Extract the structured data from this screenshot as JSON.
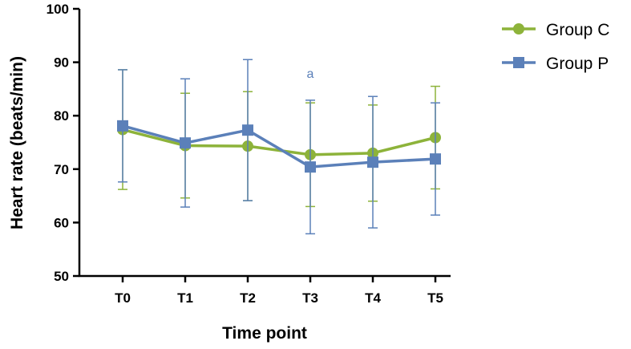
{
  "chart_data": {
    "type": "line",
    "title": "",
    "xlabel": "Time point",
    "ylabel": "Heart rate (beats/min)",
    "categories": [
      "T0",
      "T1",
      "T2",
      "T3",
      "T4",
      "T5"
    ],
    "ylim": [
      50,
      100
    ],
    "yticks": [
      50,
      60,
      70,
      80,
      90,
      100
    ],
    "grid": false,
    "legend_position": "top-right",
    "series": [
      {
        "name": "Group C",
        "color": "#8db33a",
        "marker": "circle",
        "values": [
          77.4,
          74.4,
          74.3,
          72.7,
          73.0,
          75.9
        ],
        "error_low": [
          66.2,
          64.6,
          64.1,
          63.0,
          64.0,
          66.3
        ],
        "error_high": [
          88.6,
          84.2,
          84.5,
          82.4,
          82.0,
          85.5
        ]
      },
      {
        "name": "Group P",
        "color": "#5b80b9",
        "marker": "square",
        "values": [
          78.1,
          74.9,
          77.3,
          70.4,
          71.3,
          71.9
        ],
        "error_low": [
          67.6,
          62.9,
          64.1,
          57.9,
          59.0,
          61.4
        ],
        "error_high": [
          88.6,
          86.9,
          90.5,
          82.9,
          83.6,
          82.4
        ]
      }
    ],
    "annotations": [
      {
        "text": "a",
        "category": "T3",
        "y": 88.0,
        "color": "#5b80b9"
      }
    ]
  }
}
